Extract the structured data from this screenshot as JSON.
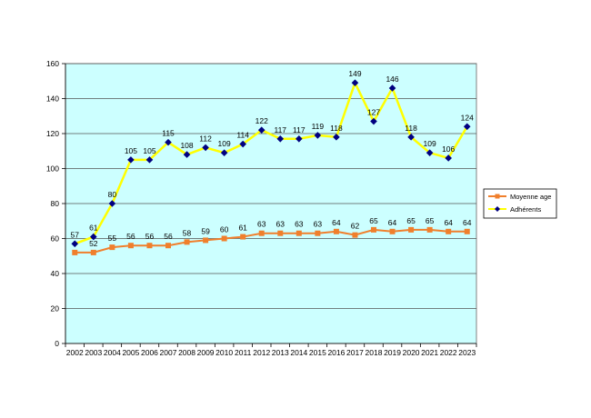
{
  "chart_data": {
    "type": "line",
    "title": "",
    "xlabel": "",
    "ylabel": "",
    "ylim": [
      0,
      160
    ],
    "yticks": [
      0,
      20,
      40,
      60,
      80,
      100,
      120,
      140,
      160
    ],
    "grid": true,
    "legend_position": "right",
    "categories": [
      "2002",
      "2003",
      "2004",
      "2005",
      "2006",
      "2007",
      "2008",
      "2009",
      "2010",
      "2011",
      "2012",
      "2013",
      "2014",
      "2015",
      "2016",
      "2017",
      "2018",
      "2019",
      "2020",
      "2021",
      "2022",
      "2023"
    ],
    "series": [
      {
        "name": "Moyenne age",
        "color": "#f07f2c",
        "marker": "square",
        "values": [
          52,
          52,
          55,
          56,
          56,
          56,
          58,
          59,
          60,
          61,
          63,
          63,
          63,
          63,
          64,
          62,
          65,
          64,
          65,
          65,
          64,
          64
        ],
        "labels": [
          "",
          "52",
          "55",
          "56",
          "56",
          "56",
          "58",
          "59",
          "60",
          "61",
          "63",
          "63",
          "63",
          "63",
          "64",
          "62",
          "65",
          "64",
          "65",
          "65",
          "64",
          "64"
        ]
      },
      {
        "name": "Adhérents",
        "color": "#ffff00",
        "marker_color": "#000080",
        "marker": "diamond",
        "values": [
          57,
          61,
          80,
          105,
          105,
          115,
          108,
          112,
          109,
          114,
          122,
          117,
          117,
          119,
          118,
          149,
          127,
          146,
          118,
          109,
          106,
          124
        ],
        "labels": [
          "57",
          "61",
          "80",
          "105",
          "105",
          "115",
          "108",
          "112",
          "109",
          "114",
          "122",
          "117",
          "117",
          "119",
          "118",
          "149",
          "127",
          "146",
          "118",
          "109",
          "106",
          "124"
        ]
      }
    ],
    "colors": {
      "plot_background": "#ccffff",
      "gridline": "#555555"
    }
  }
}
